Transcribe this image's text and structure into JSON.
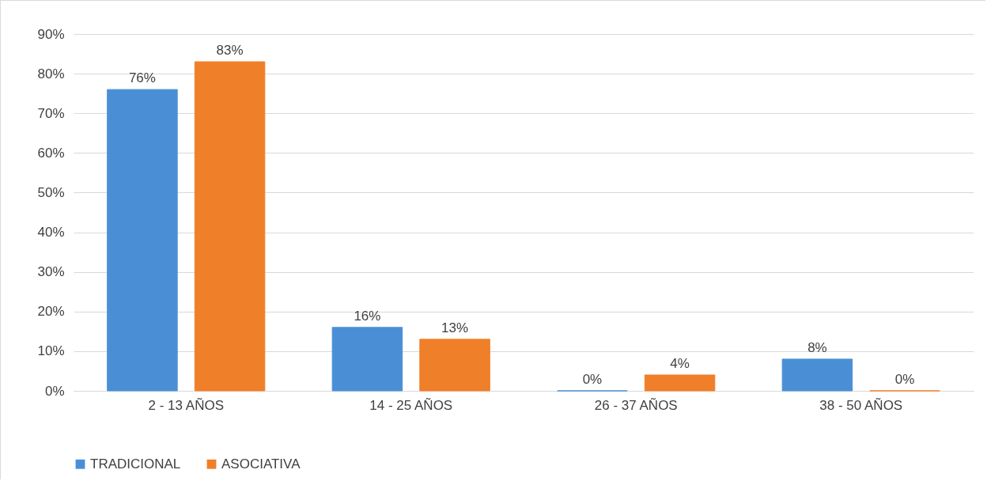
{
  "chart_data": {
    "type": "bar",
    "categories": [
      "2 - 13 AÑOS",
      "14 - 25 AÑOS",
      "26 - 37 AÑOS",
      "38 - 50 AÑOS"
    ],
    "series": [
      {
        "name": "TRADICIONAL",
        "color": "#4a8fd6",
        "values": [
          76,
          16,
          0,
          8
        ],
        "value_labels": [
          "76%",
          "16%",
          "0%",
          "8%"
        ]
      },
      {
        "name": "ASOCIATIVA",
        "color": "#f07f2a",
        "values": [
          83,
          13,
          4,
          0
        ],
        "value_labels": [
          "83%",
          "13%",
          "4%",
          "0%"
        ]
      }
    ],
    "ylim": [
      0,
      90
    ],
    "yticks": [
      {
        "value": 0,
        "label": "0%"
      },
      {
        "value": 10,
        "label": "10%"
      },
      {
        "value": 20,
        "label": "20%"
      },
      {
        "value": 30,
        "label": "30%"
      },
      {
        "value": 40,
        "label": "40%"
      },
      {
        "value": 50,
        "label": "50%"
      },
      {
        "value": 60,
        "label": "60%"
      },
      {
        "value": 70,
        "label": "70%"
      },
      {
        "value": 80,
        "label": "80%"
      },
      {
        "value": 90,
        "label": "90%"
      }
    ],
    "grid": "y",
    "legend": "bottom"
  }
}
